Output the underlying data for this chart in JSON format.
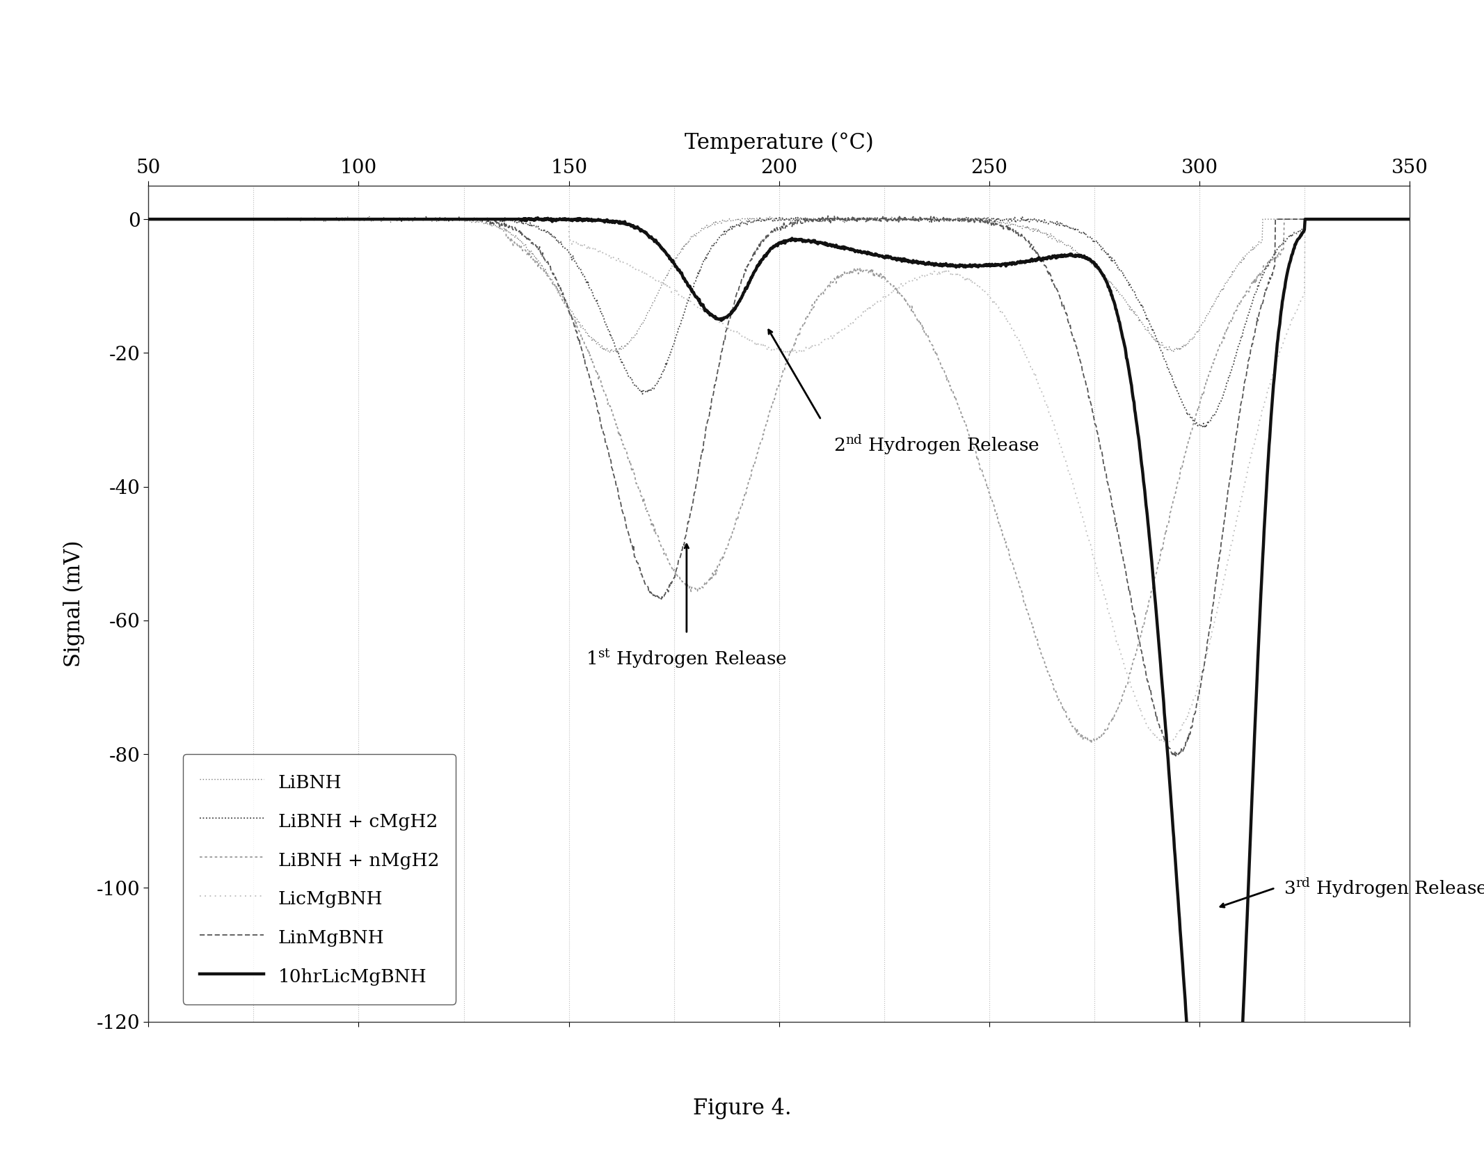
{
  "title_x": "Temperature (°C)",
  "ylabel": "Signal (mV)",
  "figure_caption": "Figure 4.",
  "x_min": 50,
  "x_max": 350,
  "y_min": -120,
  "y_max": 5,
  "x_ticks": [
    50,
    100,
    150,
    200,
    250,
    300,
    350
  ],
  "y_ticks": [
    0,
    -20,
    -40,
    -60,
    -80,
    -100,
    -120
  ],
  "legend_labels": [
    "LiBNH",
    "LiBNH + cMgH2",
    "LiBNH + nMgH2",
    "LicMgBNH",
    "LinMgBNH",
    "10hrLicMgBNH"
  ],
  "bg_color": "#ffffff",
  "vline_positions": [
    75,
    100,
    125,
    150,
    175,
    200,
    225,
    250,
    275,
    300,
    325
  ]
}
